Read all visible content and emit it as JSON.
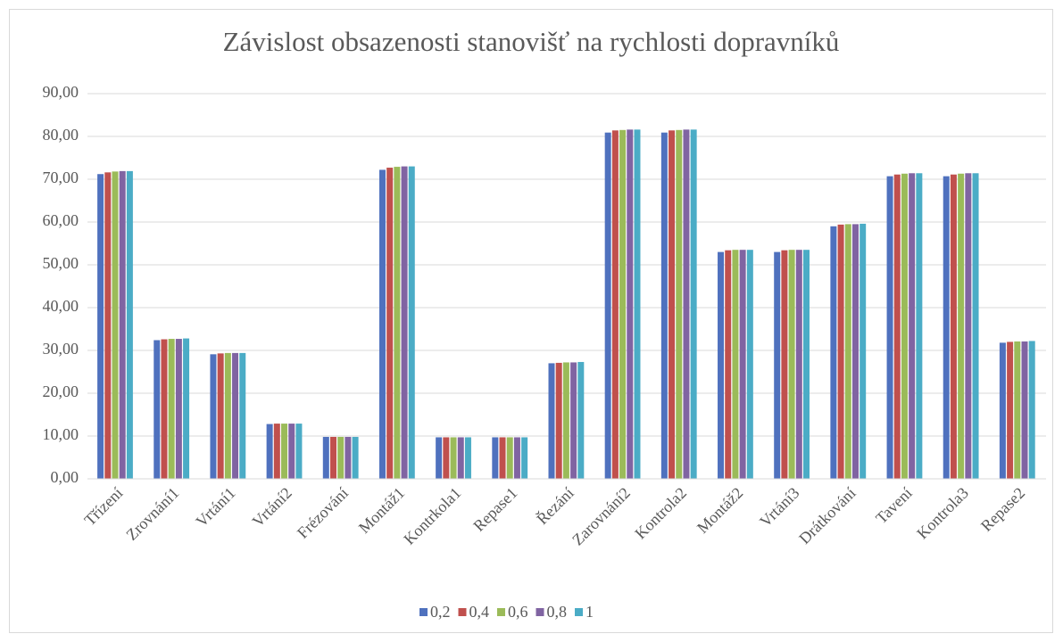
{
  "chart_data": {
    "type": "bar",
    "title": "Závislost obsazenosti stanovišť na rychlosti dopravníků",
    "categories": [
      "Třízení",
      "Zrovnání1",
      "Vrtání1",
      "Vrtání2",
      "Frézování",
      "Montáž1",
      "Kontrkola1",
      "Repase1",
      "Řezání",
      "Zarovnání2",
      "Kontrola2",
      "Montáž2",
      "Vrtání3",
      "Drátkování",
      "Tavení",
      "Kontrola3",
      "Repase2"
    ],
    "series": [
      {
        "name": "0,2",
        "color": "#4f71be",
        "values": [
          71.2,
          32.4,
          29.1,
          12.8,
          9.8,
          72.2,
          9.7,
          9.7,
          27.0,
          80.9,
          80.9,
          53.0,
          53.0,
          59.0,
          70.7,
          70.7,
          31.8
        ]
      },
      {
        "name": "0,4",
        "color": "#c0504d",
        "values": [
          71.6,
          32.6,
          29.3,
          12.9,
          9.8,
          72.7,
          9.7,
          9.7,
          27.1,
          81.4,
          81.4,
          53.4,
          53.4,
          59.4,
          71.1,
          71.1,
          32.0
        ]
      },
      {
        "name": "0,6",
        "color": "#9bbb59",
        "values": [
          71.8,
          32.7,
          29.4,
          12.9,
          9.8,
          72.9,
          9.7,
          9.7,
          27.2,
          81.5,
          81.5,
          53.5,
          53.5,
          59.5,
          71.3,
          71.3,
          32.1
        ]
      },
      {
        "name": "0,8",
        "color": "#8064a2",
        "values": [
          71.9,
          32.7,
          29.4,
          12.9,
          9.8,
          73.0,
          9.7,
          9.7,
          27.2,
          81.6,
          81.6,
          53.5,
          53.5,
          59.5,
          71.4,
          71.4,
          32.1
        ]
      },
      {
        "name": "1",
        "color": "#4bacc6",
        "values": [
          71.9,
          32.8,
          29.4,
          12.9,
          9.8,
          73.0,
          9.7,
          9.7,
          27.3,
          81.6,
          81.6,
          53.5,
          53.5,
          59.6,
          71.4,
          71.4,
          32.2
        ]
      }
    ],
    "ylim": [
      0,
      90
    ],
    "yticks": [
      {
        "value": 0,
        "label": "0,00"
      },
      {
        "value": 10,
        "label": "10,00"
      },
      {
        "value": 20,
        "label": "20,00"
      },
      {
        "value": 30,
        "label": "30,00"
      },
      {
        "value": 40,
        "label": "40,00"
      },
      {
        "value": 50,
        "label": "50,00"
      },
      {
        "value": 60,
        "label": "60,00"
      },
      {
        "value": 70,
        "label": "70,00"
      },
      {
        "value": 80,
        "label": "80,00"
      },
      {
        "value": 90,
        "label": "90,00"
      }
    ],
    "grid": true,
    "legend": "bottom"
  }
}
